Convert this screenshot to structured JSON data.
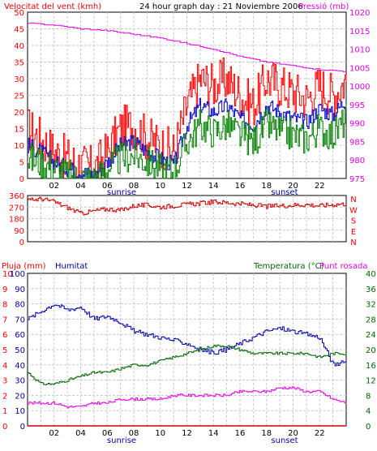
{
  "colors": {
    "bg": "#ffffff",
    "grid": "#c8c8c8",
    "frame": "#000000",
    "wind_gust": "#ff0000",
    "wind_avg": "#0000cc",
    "wind_low": "#008000",
    "pressure": "#e600e6",
    "direction": "#cc0000",
    "humidity": "#0000aa",
    "temperature": "#006600",
    "dewpoint": "#e600e6",
    "rain": "#cc0000"
  },
  "chart_data": [
    {
      "type": "line",
      "header_left": "Velocitat del vent (kmh)",
      "title": "24 hour graph day : 21 Noviembre 2006",
      "header_right": "Pressió (mb)",
      "x_ticks": [
        "02",
        "04",
        "06",
        "08",
        "10",
        "12",
        "14",
        "16",
        "18",
        "20",
        "22"
      ],
      "x_hours": [
        2,
        4,
        6,
        8,
        10,
        12,
        14,
        16,
        18,
        20,
        22
      ],
      "sunrise_label": "sunrise",
      "sunset_label": "sunset",
      "xlim": [
        0,
        24
      ],
      "ylim": [
        0,
        50
      ],
      "y_ticks": [
        "0",
        "5",
        "10",
        "15",
        "20",
        "25",
        "30",
        "35",
        "40",
        "45",
        "50"
      ],
      "y2lim": [
        975,
        1020
      ],
      "y2_ticks": [
        "975",
        "980",
        "985",
        "990",
        "995",
        "1000",
        "1005",
        "1010",
        "1015",
        "1020"
      ],
      "series": [
        {
          "key": "gust",
          "hours": [
            0,
            1,
            2,
            3,
            4,
            5,
            6,
            7,
            8,
            9,
            10,
            11,
            12,
            13,
            14,
            15,
            16,
            17,
            18,
            19,
            20,
            21,
            22,
            23,
            24
          ],
          "values": [
            15,
            12,
            8,
            6,
            4,
            3,
            8,
            15,
            16,
            12,
            10,
            8,
            22,
            30,
            28,
            30,
            25,
            22,
            30,
            28,
            26,
            24,
            28,
            25,
            30
          ]
        },
        {
          "key": "avg",
          "hours": [
            0,
            1,
            2,
            3,
            4,
            5,
            6,
            7,
            8,
            9,
            10,
            11,
            12,
            13,
            14,
            15,
            16,
            17,
            18,
            19,
            20,
            21,
            22,
            23,
            24
          ],
          "values": [
            10,
            8,
            5,
            3,
            2,
            1,
            5,
            10,
            11,
            8,
            6,
            4,
            16,
            22,
            20,
            22,
            18,
            16,
            22,
            20,
            18,
            17,
            21,
            19,
            24
          ]
        },
        {
          "key": "low",
          "hours": [
            0,
            1,
            2,
            3,
            4,
            5,
            6,
            7,
            8,
            9,
            10,
            11,
            12,
            13,
            14,
            15,
            16,
            17,
            18,
            19,
            20,
            21,
            22,
            23,
            24
          ],
          "values": [
            6,
            5,
            3,
            1,
            0,
            0,
            3,
            6,
            7,
            5,
            3,
            2,
            11,
            16,
            14,
            16,
            13,
            11,
            16,
            14,
            13,
            12,
            15,
            13,
            18
          ]
        },
        {
          "key": "pressure",
          "axis": "y2",
          "hours": [
            0,
            2,
            4,
            6,
            8,
            10,
            12,
            14,
            16,
            18,
            20,
            22,
            24
          ],
          "values": [
            1017,
            1016.5,
            1015.5,
            1015,
            1014,
            1013,
            1011.5,
            1010,
            1008,
            1006.5,
            1005.5,
            1004.5,
            1004
          ]
        }
      ]
    },
    {
      "type": "line",
      "xlim": [
        0,
        24
      ],
      "ylim": [
        0,
        360
      ],
      "y_ticks": [
        "0",
        "90",
        "180",
        "270",
        "360"
      ],
      "right_letters": [
        "N",
        "W",
        "S",
        "E",
        "N"
      ],
      "series": [
        {
          "key": "direction",
          "hours": [
            0,
            1,
            2,
            3,
            4,
            5,
            6,
            7,
            8,
            9,
            10,
            11,
            12,
            13,
            14,
            15,
            16,
            17,
            18,
            19,
            20,
            21,
            22,
            23,
            24
          ],
          "values": [
            320,
            335,
            310,
            265,
            220,
            240,
            255,
            245,
            280,
            285,
            270,
            280,
            290,
            300,
            310,
            305,
            295,
            285,
            275,
            280,
            285,
            290,
            280,
            290,
            295
          ]
        }
      ]
    },
    {
      "type": "line",
      "header_left": "Pluja (mm)",
      "header_mid": "Humitat",
      "header_right_a": "Temperatura (°C)",
      "header_right_b": "Punt rosada",
      "xlim": [
        0,
        24
      ],
      "ylim_rain": [
        0,
        10
      ],
      "ylim_hum": [
        0,
        100
      ],
      "ylim_temp": [
        0,
        40
      ],
      "rain_ticks": [
        "0",
        "1",
        "2",
        "3",
        "4",
        "5",
        "6",
        "7",
        "8",
        "9",
        "10"
      ],
      "hum_ticks": [
        "0",
        "10",
        "20",
        "30",
        "40",
        "50",
        "60",
        "70",
        "80",
        "90",
        "100"
      ],
      "temp_ticks": [
        "0",
        "4",
        "8",
        "12",
        "16",
        "20",
        "24",
        "28",
        "32",
        "36",
        "40"
      ],
      "series": [
        {
          "key": "humidity",
          "axis": "hum",
          "hours": [
            0,
            1,
            2,
            3,
            4,
            5,
            6,
            7,
            8,
            9,
            10,
            11,
            12,
            13,
            14,
            15,
            16,
            17,
            18,
            19,
            20,
            21,
            22,
            23,
            24
          ],
          "values": [
            70,
            75,
            80,
            76,
            78,
            70,
            72,
            68,
            62,
            60,
            58,
            56,
            54,
            50,
            48,
            50,
            54,
            58,
            62,
            64,
            62,
            60,
            58,
            40,
            42
          ]
        },
        {
          "key": "temperature",
          "axis": "temp",
          "hours": [
            0,
            1,
            2,
            3,
            4,
            5,
            6,
            7,
            8,
            9,
            10,
            11,
            12,
            13,
            14,
            15,
            16,
            17,
            18,
            19,
            20,
            21,
            22,
            23,
            24
          ],
          "values": [
            14,
            11,
            11,
            12,
            13,
            14,
            14,
            15,
            16,
            16,
            17,
            18,
            19,
            20,
            21,
            21,
            20,
            19,
            19,
            19,
            19,
            19,
            18,
            19,
            19
          ]
        },
        {
          "key": "dewpoint",
          "axis": "temp",
          "hours": [
            0,
            1,
            2,
            3,
            4,
            5,
            6,
            7,
            8,
            9,
            10,
            11,
            12,
            13,
            14,
            15,
            16,
            17,
            18,
            19,
            20,
            21,
            22,
            23,
            24
          ],
          "values": [
            6,
            6,
            6,
            5,
            5,
            6,
            6,
            7,
            7,
            7,
            7,
            8,
            8,
            8,
            8,
            8,
            9,
            9,
            9,
            10,
            10,
            9,
            9,
            7,
            6
          ]
        },
        {
          "key": "rain",
          "axis": "rain",
          "hours": [
            0,
            24
          ],
          "values": [
            0,
            0
          ]
        }
      ]
    }
  ]
}
